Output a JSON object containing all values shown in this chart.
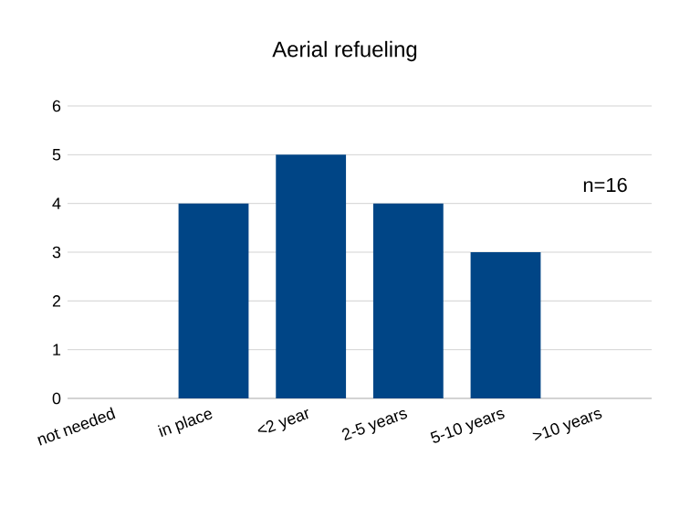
{
  "chart_data": {
    "type": "bar",
    "title": "Aerial refueling",
    "categories": [
      "not needed",
      "in place",
      "<2 year",
      "2-5 years",
      "5-10 years",
      ">10 years"
    ],
    "values": [
      0,
      4,
      5,
      4,
      3,
      0
    ],
    "color": "#004586",
    "ylim": [
      0,
      6
    ],
    "yticks": [
      0,
      1,
      2,
      3,
      4,
      5,
      6
    ],
    "grid": "y",
    "annotations": [
      "n=16"
    ]
  }
}
